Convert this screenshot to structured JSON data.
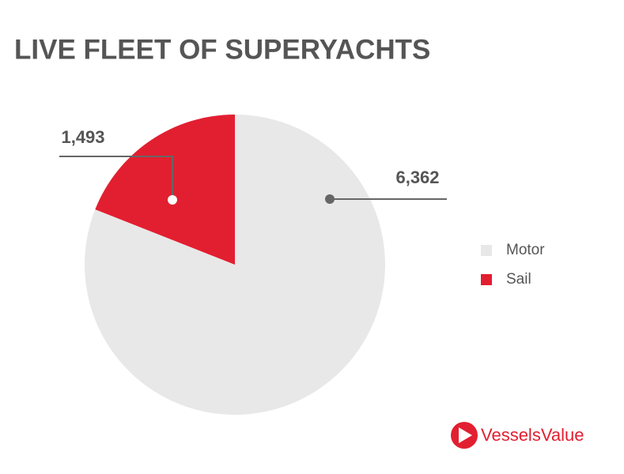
{
  "chart_data": {
    "type": "pie",
    "title": "LIVE FLEET OF SUPERYACHTS",
    "categories": [
      "Motor",
      "Sail"
    ],
    "values": [
      6362,
      1493
    ],
    "value_labels": [
      "6,362",
      "1,493"
    ],
    "colors": [
      "#e8e8e8",
      "#e21f30"
    ],
    "legend": "right"
  },
  "branding": {
    "logo_text": "VesselsValue"
  }
}
